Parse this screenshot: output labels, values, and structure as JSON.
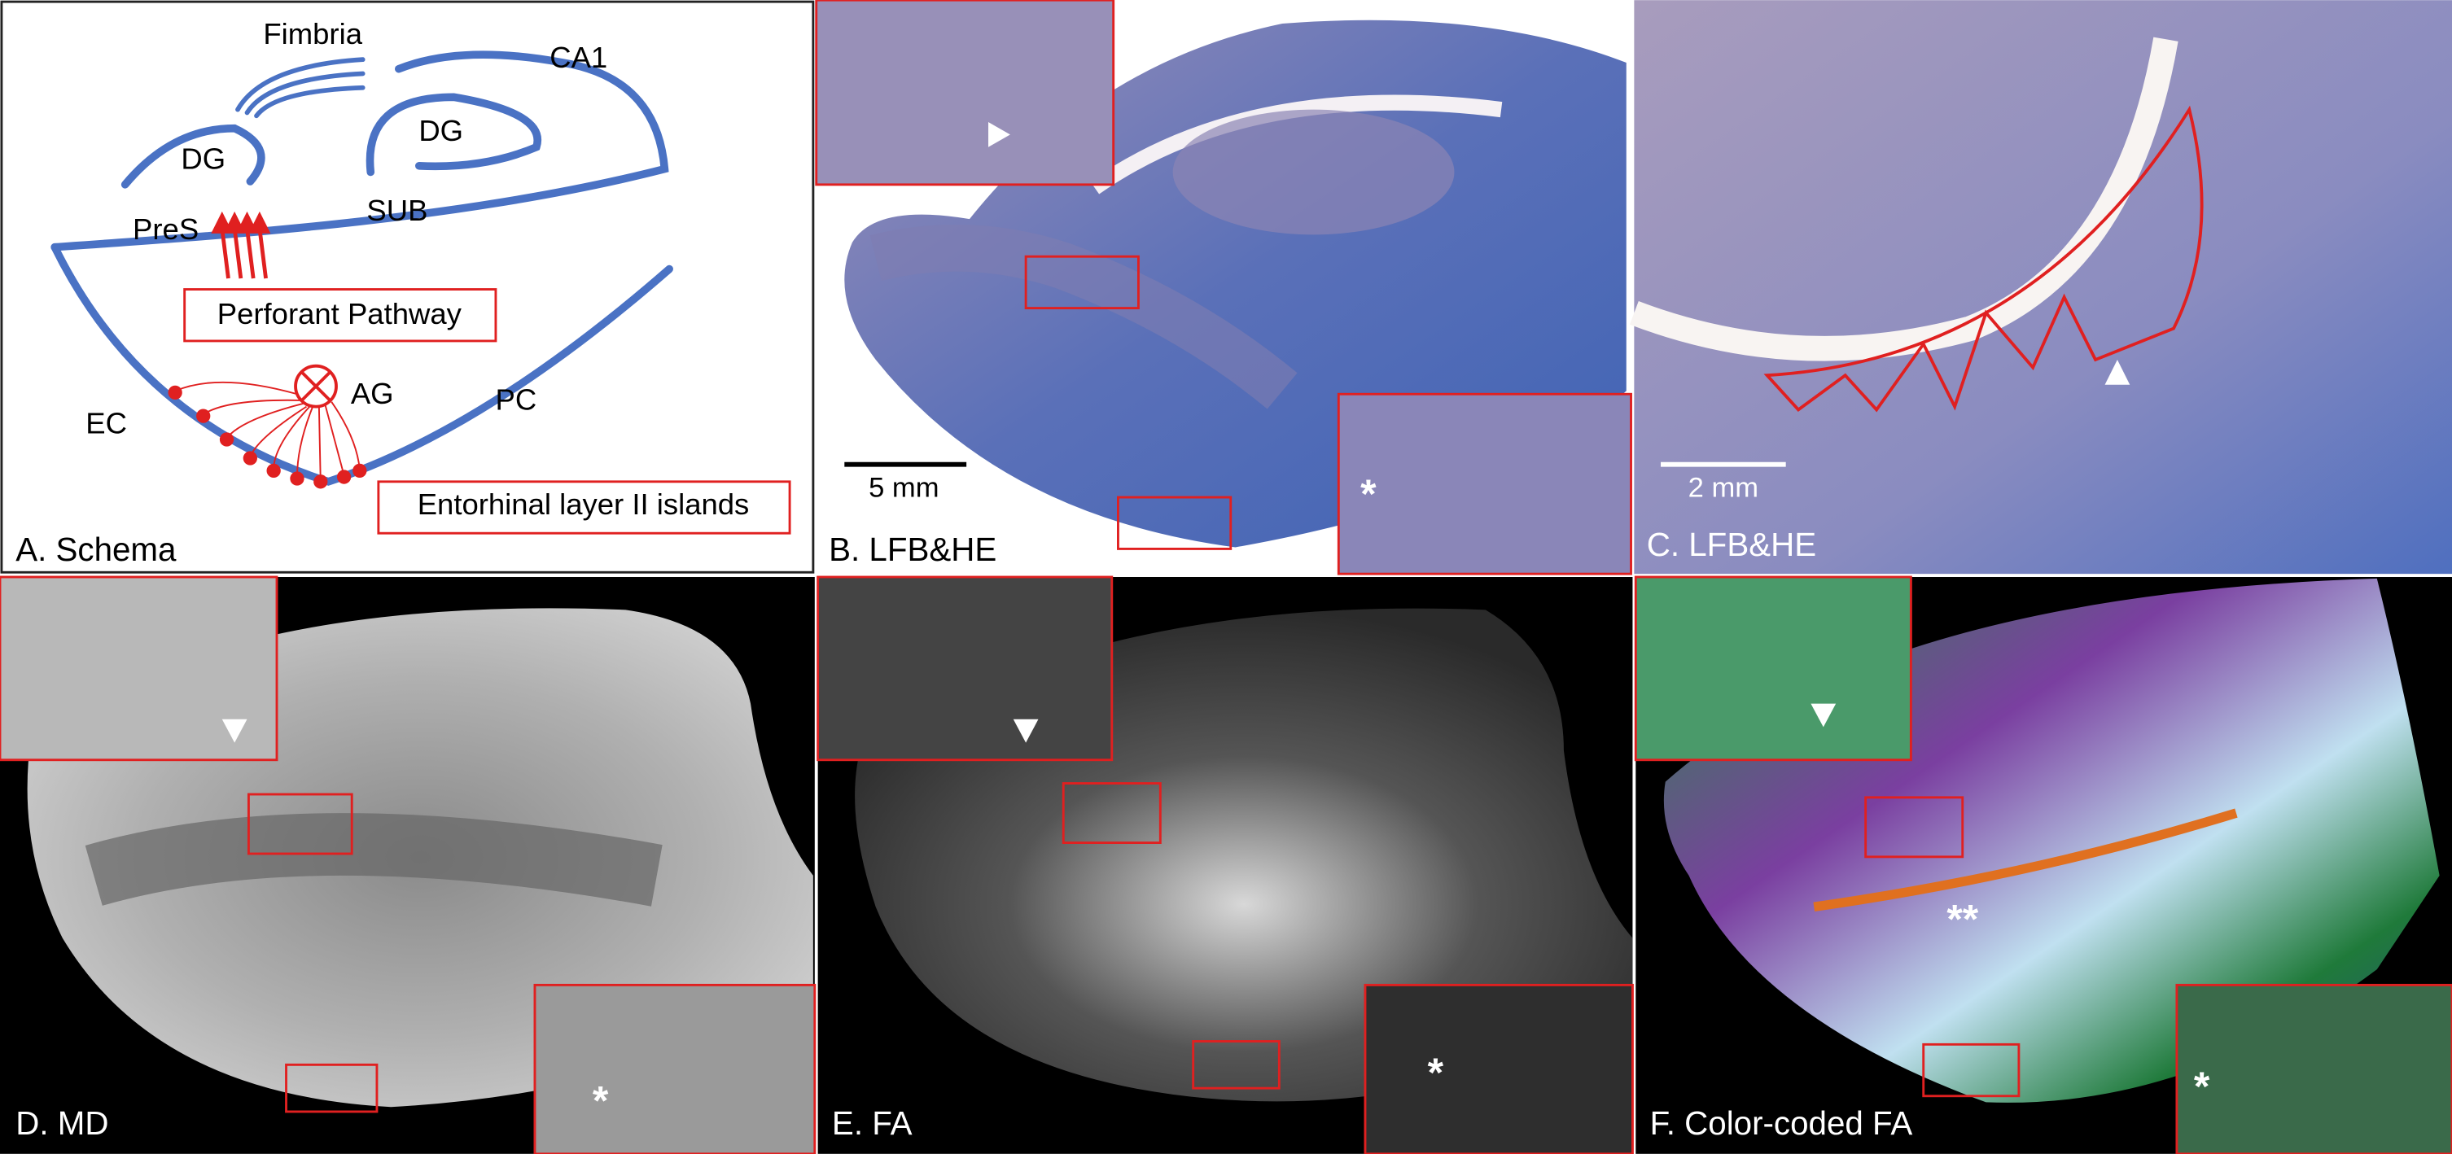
{
  "schema": {
    "labels": [
      "Fimbria",
      "CA1",
      "DG",
      "DG",
      "PreS",
      "SUB",
      "EC",
      "AG",
      "PC"
    ],
    "boxes": [
      "Perforant Pathway",
      "Entorhinal layer II islands"
    ]
  },
  "panels": [
    {
      "label": "A. Schema"
    },
    {
      "label": "B. LFB&HE",
      "scale_bar": "5 mm",
      "marker": "*"
    },
    {
      "label": "C. LFB&HE",
      "scale_bar": "2 mm"
    },
    {
      "label": "D. MD",
      "marker": "*"
    },
    {
      "label": "E. FA",
      "marker": "*"
    },
    {
      "label": "F. Color-coded FA",
      "marker": "*",
      "center_marker": "**"
    }
  ]
}
